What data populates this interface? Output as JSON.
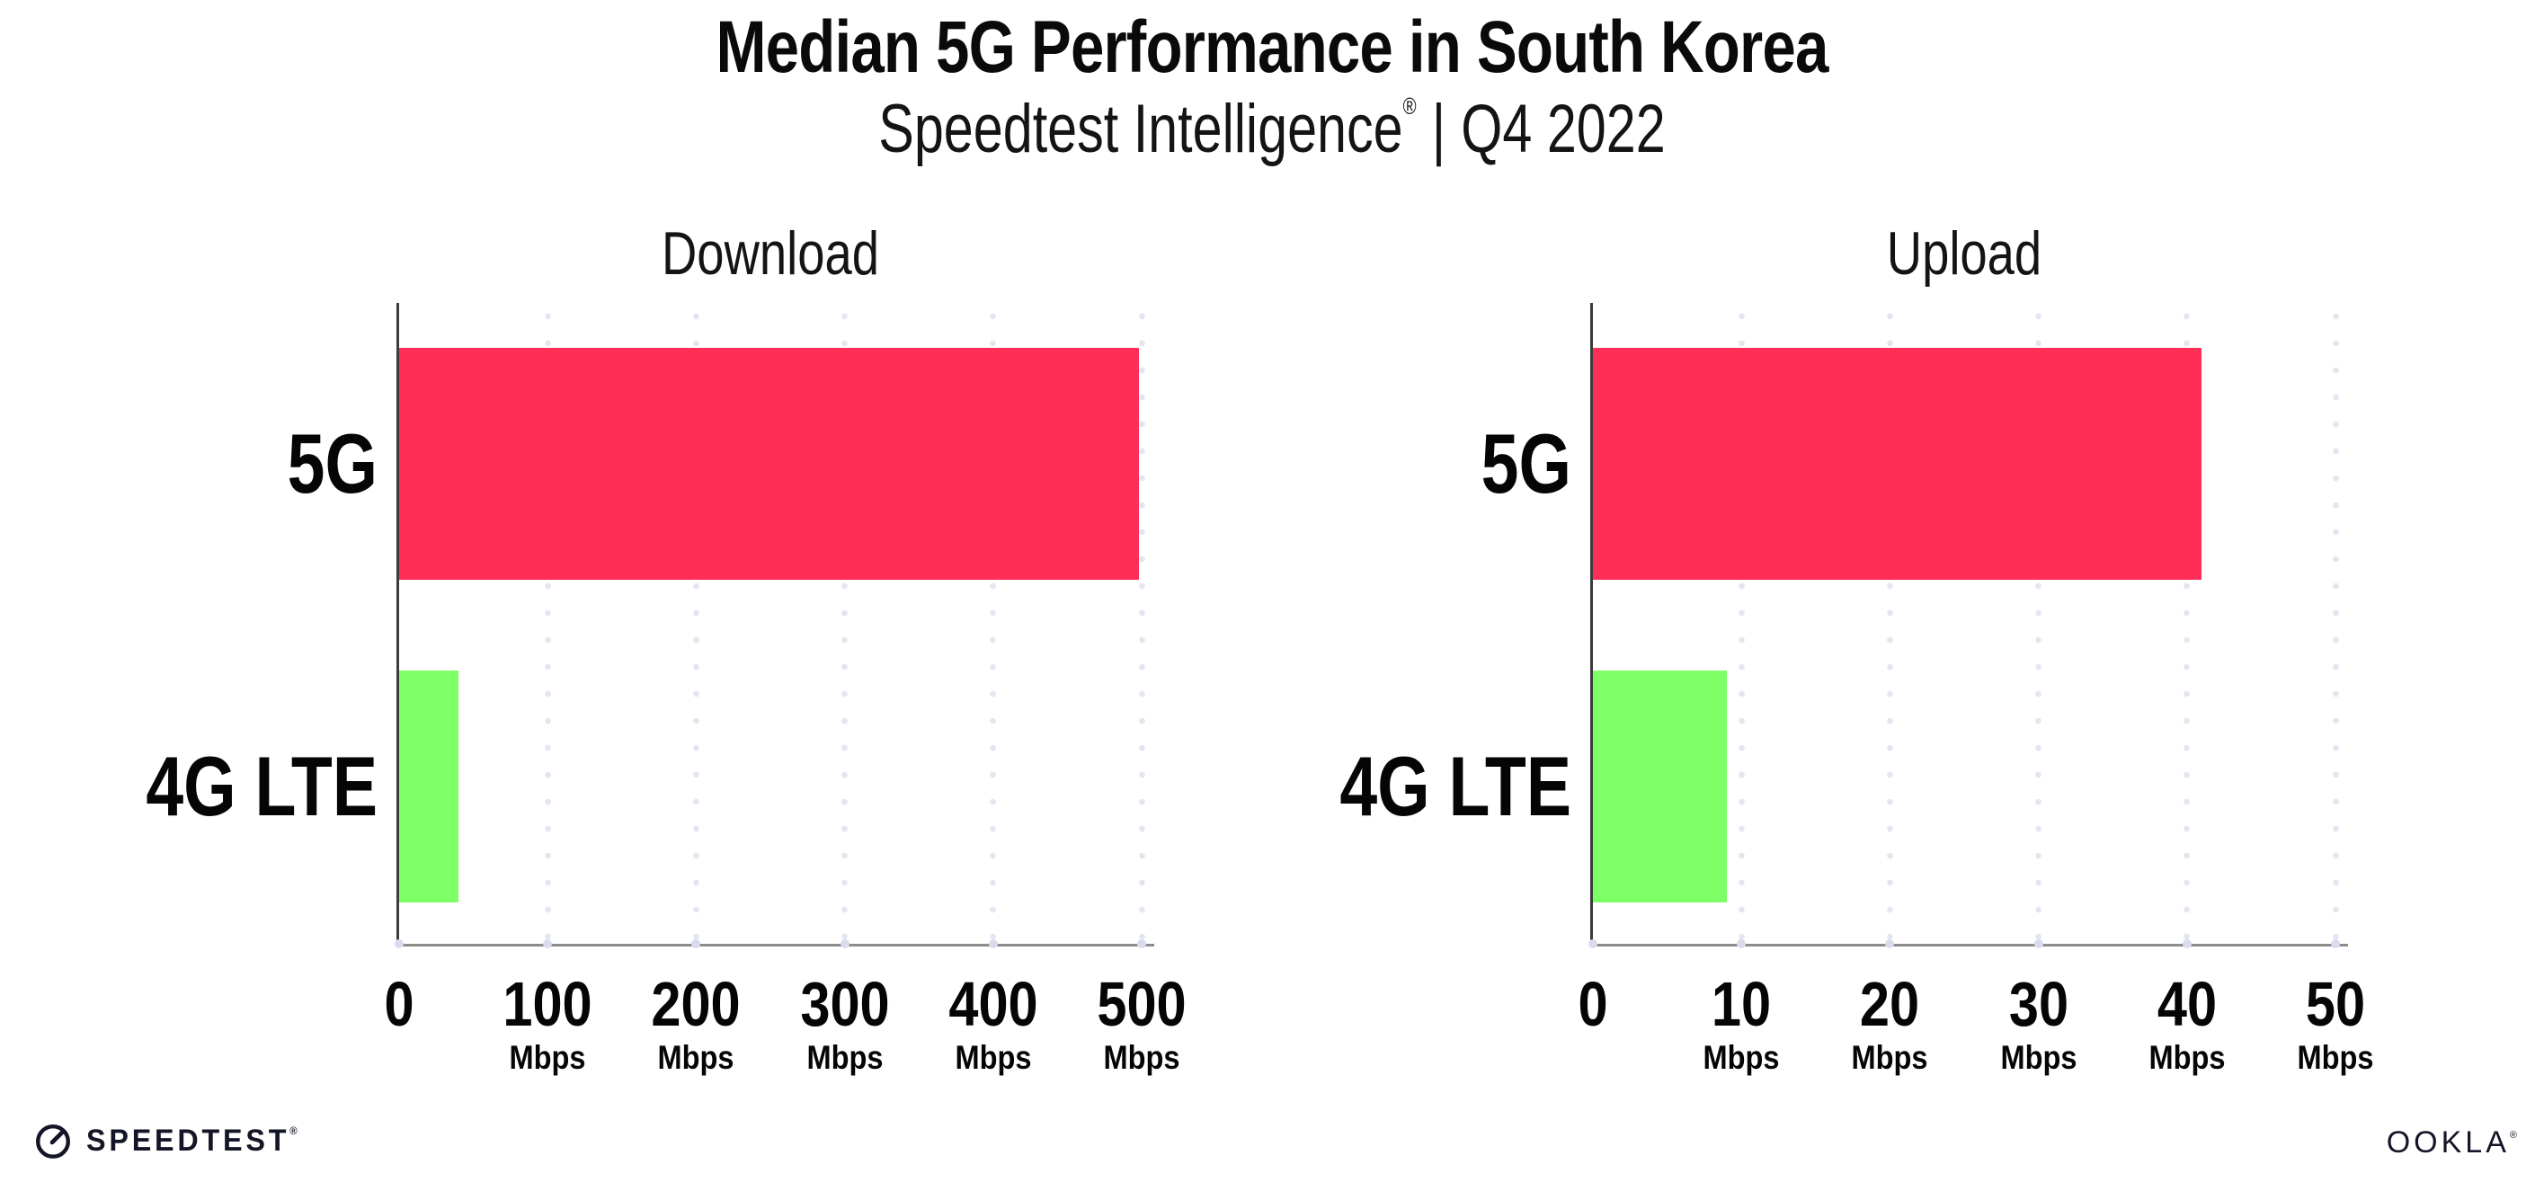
{
  "header": {
    "title": "Median 5G Performance in South Korea",
    "subtitle": {
      "product": "Speedtest Intelligence",
      "registered_mark": "®",
      "divider": "|",
      "period": "Q4 2022"
    }
  },
  "chart_data": [
    {
      "type": "bar",
      "orientation": "horizontal",
      "title": "Download",
      "categories": [
        "5G",
        "4G LTE"
      ],
      "values": [
        498,
        40
      ],
      "unit": "Mbps",
      "xlim": [
        0,
        500
      ],
      "xticks": [
        0,
        100,
        200,
        300,
        400,
        500
      ],
      "tick_unit_label": "Mbps",
      "bar_colors": [
        "#FF2E56",
        "#7DFF66"
      ],
      "grid": "dotted-vertical-gridlines",
      "legend": "none"
    },
    {
      "type": "bar",
      "orientation": "horizontal",
      "title": "Upload",
      "categories": [
        "5G",
        "4G LTE"
      ],
      "values": [
        41,
        9
      ],
      "unit": "Mbps",
      "xlim": [
        0,
        50
      ],
      "xticks": [
        0,
        10,
        20,
        30,
        40,
        50
      ],
      "tick_unit_label": "Mbps",
      "bar_colors": [
        "#FF2E56",
        "#7DFF66"
      ],
      "grid": "dotted-vertical-gridlines",
      "legend": "none"
    }
  ],
  "footer": {
    "speedtest_label": "SPEEDTEST",
    "speedtest_mark": "®",
    "ookla_label": "OOKLA",
    "ookla_mark": "®"
  },
  "colors": {
    "bar_5g": "#FF2E56",
    "bar_4g_lte": "#7DFF66",
    "y_axis": "#3c3c3c",
    "x_axis": "#8c8c8c",
    "gridline_dots": "#e3e5f1",
    "text": "#0a0a0a",
    "background": "#ffffff"
  }
}
